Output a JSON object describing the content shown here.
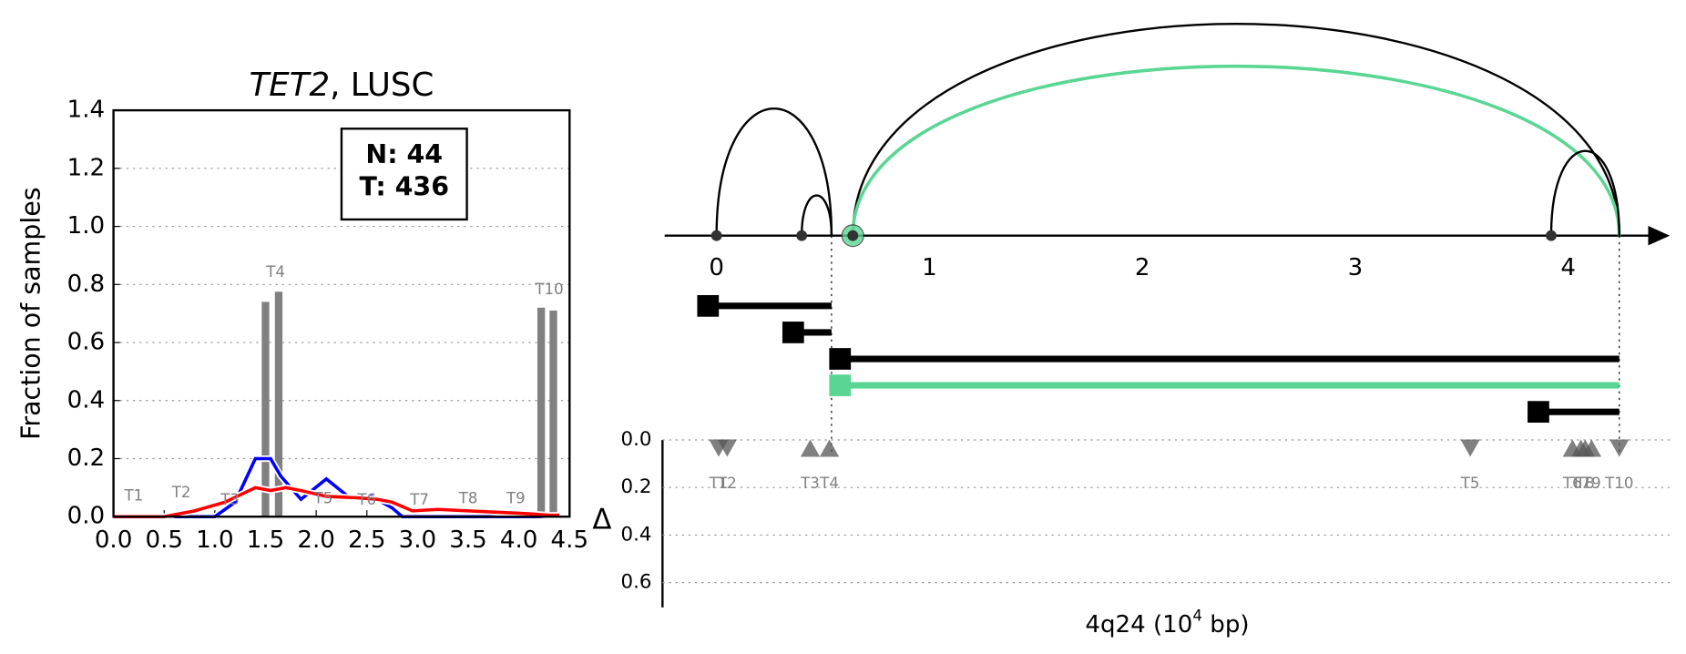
{
  "chart_data": [
    {
      "type": "bar_line",
      "title": {
        "gene": "TET2",
        "rest": ", LUSC"
      },
      "ylabel": "Fraction of samples",
      "xlim": [
        0,
        4.5
      ],
      "ylim": [
        0,
        1.4
      ],
      "xticks": [
        {
          "value": 0,
          "label": "0.0"
        },
        {
          "value": 0.5,
          "label": "0.5"
        },
        {
          "value": 1,
          "label": "1.0"
        },
        {
          "value": 1.5,
          "label": "1.5"
        },
        {
          "value": 2,
          "label": "2.0"
        },
        {
          "value": 2.5,
          "label": "2.5"
        },
        {
          "value": 3,
          "label": "3.0"
        },
        {
          "value": 3.5,
          "label": "3.5"
        },
        {
          "value": 4,
          "label": "4.0"
        },
        {
          "value": 4.5,
          "label": "4.5"
        }
      ],
      "yticks": [
        {
          "value": 0,
          "label": "0.0"
        },
        {
          "value": 0.2,
          "label": "0.2"
        },
        {
          "value": 0.4,
          "label": "0.4"
        },
        {
          "value": 0.6,
          "label": "0.6"
        },
        {
          "value": 0.8,
          "label": "0.8"
        },
        {
          "value": 1,
          "label": "1.0"
        },
        {
          "value": 1.2,
          "label": "1.2"
        },
        {
          "value": 1.4,
          "label": "1.4"
        }
      ],
      "grid": true,
      "bars": {
        "color": "#808080",
        "x": [
          1.5,
          1.63,
          4.22,
          4.34
        ],
        "values": [
          0.74,
          0.775,
          0.72,
          0.71
        ]
      },
      "series": [
        {
          "color": "#0000ff",
          "x": [
            0,
            1.0,
            1.2,
            1.4,
            1.55,
            1.65,
            1.85,
            2.1,
            2.35,
            2.55,
            2.75,
            2.85,
            4.4
          ],
          "values": [
            0,
            0,
            0.05,
            0.2,
            0.2,
            0.14,
            0.06,
            0.13,
            0.06,
            0.07,
            0.03,
            0,
            0
          ]
        },
        {
          "color": "#ff0000",
          "x": [
            0,
            0.5,
            0.8,
            1.1,
            1.4,
            1.55,
            1.7,
            1.85,
            2.1,
            2.4,
            2.6,
            2.75,
            2.95,
            3.2,
            3.5,
            3.8,
            4.1,
            4.3,
            4.4
          ],
          "values": [
            0,
            0,
            0.02,
            0.05,
            0.1,
            0.09,
            0.1,
            0.09,
            0.07,
            0.065,
            0.06,
            0.05,
            0.02,
            0.025,
            0.02,
            0.015,
            0.01,
            0.005,
            0.005
          ]
        }
      ],
      "annotations": [
        {
          "text": "T1",
          "x": 0.2,
          "y": 0.07
        },
        {
          "text": "T2",
          "x": 0.67,
          "y": 0.08
        },
        {
          "text": "T3",
          "x": 1.15,
          "y": 0.055
        },
        {
          "text": "T4",
          "x": 1.6,
          "y": 0.84
        },
        {
          "text": "T5",
          "x": 2.07,
          "y": 0.06
        },
        {
          "text": "T6",
          "x": 2.5,
          "y": 0.055
        },
        {
          "text": "T7",
          "x": 3.02,
          "y": 0.055
        },
        {
          "text": "T8",
          "x": 3.5,
          "y": 0.06
        },
        {
          "text": "T9",
          "x": 3.97,
          "y": 0.06
        },
        {
          "text": "T10",
          "x": 4.3,
          "y": 0.78
        }
      ],
      "legend_box": [
        "N: 44",
        "T: 436"
      ],
      "legend_loc": "upper right"
    },
    {
      "type": "arc",
      "xlabel": {
        "base": "4q24 (10",
        "sup": "4",
        "unit": " bp)"
      },
      "xlim": [
        -0.24,
        4.47
      ],
      "xticks": [
        0,
        1,
        2,
        3,
        4
      ],
      "nodes": [
        {
          "x": 0,
          "color": "#333333"
        },
        {
          "x": 0.4,
          "color": "#333333"
        },
        {
          "x": 0.64,
          "color": "#5ad694"
        },
        {
          "x": 3.92,
          "color": "#333333"
        }
      ],
      "arcs": [
        {
          "start": 0,
          "end": 0.54,
          "height": 0.6,
          "color": "#000000"
        },
        {
          "start": 0.4,
          "end": 0.54,
          "height": 0.19,
          "color": "#000000"
        },
        {
          "start": 0.64,
          "end": 4.24,
          "height": 1.0,
          "color": "#000000"
        },
        {
          "start": 0.64,
          "end": 4.24,
          "height": 0.8,
          "color": "#5ad694"
        },
        {
          "start": 3.92,
          "end": 4.24,
          "height": 0.4,
          "color": "#000000"
        }
      ],
      "guide_lines": [
        0.54,
        4.24
      ],
      "transcripts": [
        {
          "start": -0.04,
          "end": 0.54,
          "color": "#000000"
        },
        {
          "start": 0.36,
          "end": 0.54,
          "color": "#000000"
        },
        {
          "start": 0.58,
          "end": 4.24,
          "color": "#000000"
        },
        {
          "start": 0.58,
          "end": 4.24,
          "color": "#5ad694"
        },
        {
          "start": 3.86,
          "end": 4.24,
          "color": "#000000"
        }
      ],
      "ylabel": "Δ",
      "ylim": [
        0,
        0.7
      ],
      "yticks": [
        {
          "value": 0,
          "label": "0.0"
        },
        {
          "value": 0.2,
          "label": "0.2"
        },
        {
          "value": 0.4,
          "label": "0.4"
        },
        {
          "value": 0.6,
          "label": "0.6"
        }
      ],
      "markers": [
        {
          "name": "T1",
          "x": 0.01,
          "delta": 0.03,
          "dir": "down"
        },
        {
          "name": "T2",
          "x": 0.05,
          "delta": 0.03,
          "dir": "down"
        },
        {
          "name": "T3",
          "x": 0.44,
          "delta": 0.03,
          "dir": "up"
        },
        {
          "name": "T4",
          "x": 0.53,
          "delta": 0.03,
          "dir": "up"
        },
        {
          "name": "T5",
          "x": 3.54,
          "delta": 0.03,
          "dir": "down"
        },
        {
          "name": "T6",
          "x": 4.02,
          "delta": 0.03,
          "dir": "up"
        },
        {
          "name": "T7",
          "x": 4.06,
          "delta": 0.03,
          "dir": "up"
        },
        {
          "name": "T8",
          "x": 4.08,
          "delta": 0.03,
          "dir": "up"
        },
        {
          "name": "T9",
          "x": 4.11,
          "delta": 0.03,
          "dir": "up"
        },
        {
          "name": "T10",
          "x": 4.24,
          "delta": 0.03,
          "dir": "down"
        }
      ]
    }
  ]
}
